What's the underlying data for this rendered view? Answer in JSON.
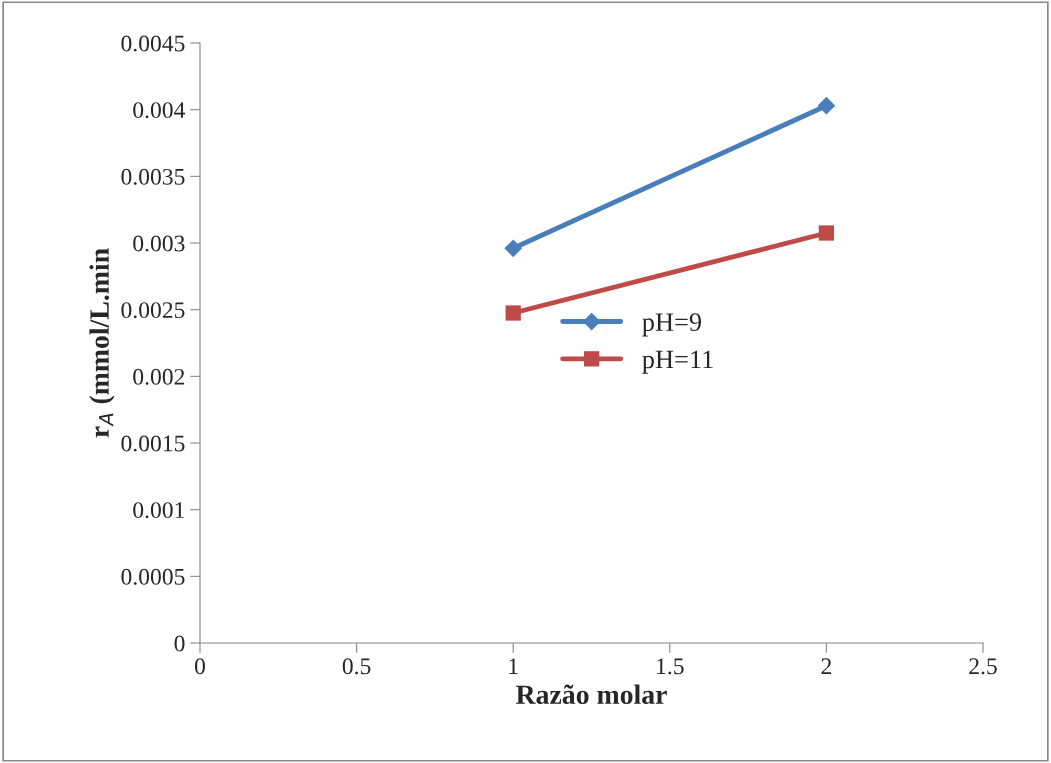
{
  "chart_data": {
    "type": "line",
    "xlabel": "Razão molar",
    "ylabel": "r$_{A}$ (mmol/L.min",
    "x": [
      1,
      2
    ],
    "series": [
      {
        "name": "pH=9",
        "color": "#4a7ebb",
        "marker": "diamond",
        "values": [
          0.00296,
          0.00403
        ]
      },
      {
        "name": "pH=11",
        "color": "#be4b48",
        "marker": "square",
        "values": [
          0.002475,
          0.003075
        ]
      }
    ],
    "xlim": [
      0,
      2.5
    ],
    "xticks": [
      0,
      0.5,
      1,
      1.5,
      2,
      2.5
    ],
    "ylim": [
      0,
      0.0045
    ],
    "yticks": [
      0,
      0.0005,
      0.001,
      0.0015,
      0.002,
      0.0025,
      0.003,
      0.0035,
      0.004,
      0.0045
    ],
    "grid": false,
    "legend": "center"
  }
}
